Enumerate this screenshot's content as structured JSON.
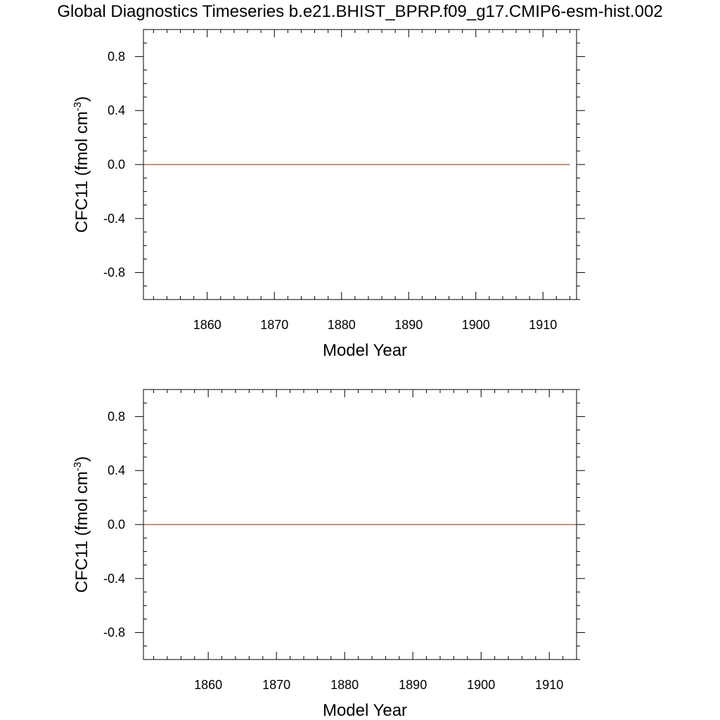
{
  "title": "Global Diagnostics Timeseries b.e21.BHIST_BPRP.f09_g17.CMIP6-esm-hist.002",
  "colors": {
    "series": "#a0522d",
    "axis": "#000000",
    "background": "#ffffff"
  },
  "chart_data": [
    {
      "type": "line",
      "xlabel": "Model Year",
      "ylabel_main": "CFC11 (fmol cm",
      "ylabel_sup": "-3",
      "ylabel_close": ")",
      "xlim": [
        1850.5,
        1915
      ],
      "ylim": [
        -1.0,
        1.0
      ],
      "xticks": [
        1860,
        1870,
        1880,
        1890,
        1900,
        1910
      ],
      "yticks": [
        0.8,
        0.4,
        0.0,
        -0.4,
        -0.8
      ],
      "ytick_labels": [
        "0.8",
        "0.4",
        "0.0",
        "-0.4",
        "-0.8"
      ],
      "grid": false,
      "series": [
        {
          "x": [
            1850.5,
            1914
          ],
          "y": [
            0.0,
            0.0
          ]
        }
      ]
    },
    {
      "type": "line",
      "xlabel": "Model Year",
      "ylabel_main": "CFC11 (fmol cm",
      "ylabel_sup": "-3",
      "ylabel_close": ")",
      "xlim": [
        1850.5,
        1914
      ],
      "ylim": [
        -1.0,
        1.0
      ],
      "xticks": [
        1860,
        1870,
        1880,
        1890,
        1900,
        1910
      ],
      "yticks": [
        0.8,
        0.4,
        0.0,
        -0.4,
        -0.8
      ],
      "ytick_labels": [
        "0.8",
        "0.4",
        "0.0",
        "-0.4",
        "-0.8"
      ],
      "grid": false,
      "series": [
        {
          "x": [
            1850.5,
            1914
          ],
          "y": [
            0.0,
            0.0
          ]
        }
      ]
    }
  ]
}
